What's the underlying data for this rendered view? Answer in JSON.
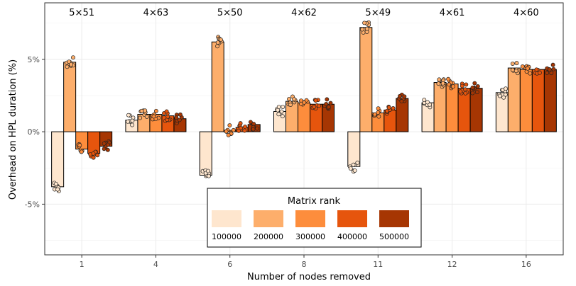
{
  "chart_data": {
    "type": "bar",
    "xlabel": "Number of nodes removed",
    "ylabel": "Overhead on HPL duration (%)",
    "categories": [
      "1",
      "4",
      "6",
      "8",
      "11",
      "12",
      "16"
    ],
    "group_labels": [
      "5×51",
      "4×63",
      "5×50",
      "4×62",
      "5×49",
      "4×61",
      "4×60"
    ],
    "series": [
      {
        "name": "100000",
        "color": "#fee6ce",
        "values": [
          -3.8,
          0.8,
          -3.0,
          1.4,
          -2.4,
          2.0,
          2.7
        ]
      },
      {
        "name": "200000",
        "color": "#fdae6b",
        "values": [
          4.8,
          1.2,
          6.2,
          2.1,
          7.2,
          3.4,
          4.4
        ]
      },
      {
        "name": "300000",
        "color": "#fd8d3c",
        "values": [
          -1.2,
          1.2,
          0.1,
          2.0,
          1.3,
          3.3,
          4.3
        ]
      },
      {
        "name": "400000",
        "color": "#e6550d",
        "values": [
          -1.5,
          1.1,
          0.3,
          1.9,
          1.5,
          3.0,
          4.3
        ]
      },
      {
        "name": "500000",
        "color": "#a63603",
        "values": [
          -1.0,
          0.9,
          0.5,
          1.9,
          2.3,
          3.0,
          4.3
        ]
      }
    ],
    "ylim": [
      -8.5,
      8.9
    ],
    "yticks": [
      -5,
      0,
      5
    ],
    "ytick_labels": [
      "-5%",
      "0%",
      "5%"
    ],
    "legend": {
      "title": "Matrix rank",
      "placement": "bottom-center",
      "labels": [
        "100000",
        "200000",
        "300000",
        "400000",
        "500000"
      ]
    },
    "grid": true,
    "points_overlay": true
  }
}
